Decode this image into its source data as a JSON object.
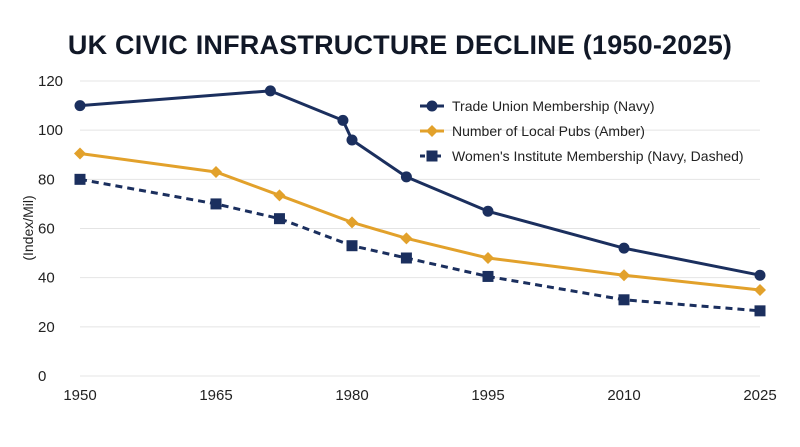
{
  "chart_data": {
    "type": "line",
    "title": "UK CIVIC INFRASTRUCTURE DECLINE (1950-2025)",
    "xlabel": "",
    "ylabel": "(Index/Mil)",
    "xlim": [
      1950,
      2025
    ],
    "ylim": [
      0,
      120
    ],
    "x_ticks": [
      1950,
      1965,
      1980,
      1995,
      2010,
      2025
    ],
    "y_ticks": [
      0,
      20,
      40,
      60,
      80,
      100,
      120
    ],
    "grid": "horizontal",
    "legend_position": "top-right",
    "series": [
      {
        "name": "Trade Union Membership (Navy)",
        "color": "#1b2f5e",
        "marker": "circle",
        "dash": "solid",
        "x": [
          1950,
          1971,
          1979,
          1980,
          1986,
          1995,
          2010,
          2025
        ],
        "values": [
          110,
          116,
          104,
          96,
          81,
          67,
          52,
          41
        ]
      },
      {
        "name": "Number of Local Pubs (Amber)",
        "color": "#e2a12b",
        "marker": "diamond",
        "dash": "solid",
        "x": [
          1950,
          1965,
          1972,
          1980,
          1986,
          1995,
          2010,
          2025
        ],
        "values": [
          90.5,
          83,
          73.5,
          62.5,
          56,
          48,
          41,
          35
        ]
      },
      {
        "name": "Women's Institute Membership (Navy, Dashed)",
        "color": "#1b2f5e",
        "marker": "square",
        "dash": "dashed",
        "x": [
          1950,
          1965,
          1972,
          1980,
          1986,
          1995,
          2010,
          2025
        ],
        "values": [
          80,
          70,
          64,
          53,
          48,
          40.5,
          31,
          26.5
        ]
      }
    ]
  }
}
